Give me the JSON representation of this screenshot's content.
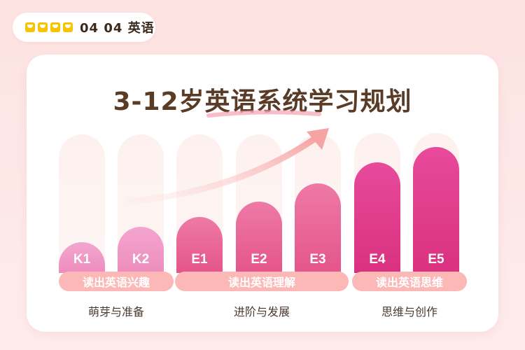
{
  "brand": {
    "logo_text": "04 04 英语"
  },
  "title": "3-12岁英语系统学习规划",
  "levels": [
    {
      "label": "K1",
      "color_top": "#f3a6cf",
      "color_bottom": "#ee8dbd"
    },
    {
      "label": "K2",
      "color_top": "#f3a6cf",
      "color_bottom": "#ee8dbd"
    },
    {
      "label": "E1",
      "color_top": "#ee7aa6",
      "color_bottom": "#e5558a"
    },
    {
      "label": "E2",
      "color_top": "#ee7aa6",
      "color_bottom": "#e5558a"
    },
    {
      "label": "E3",
      "color_top": "#ee7aa6",
      "color_bottom": "#e5558a"
    },
    {
      "label": "E4",
      "color_top": "#e84a9b",
      "color_bottom": "#d9317f"
    },
    {
      "label": "E5",
      "color_top": "#e84a9b",
      "color_bottom": "#d9317f"
    }
  ],
  "groups": [
    {
      "pill": "读出英语兴趣",
      "stage": "萌芽与准备"
    },
    {
      "pill": "读出英语理解",
      "stage": "进阶与发展"
    },
    {
      "pill": "读出英语思维",
      "stage": "思维与创作"
    }
  ],
  "colors": {
    "pill_bg": "#fbb8b6",
    "title": "#5a3b26"
  }
}
